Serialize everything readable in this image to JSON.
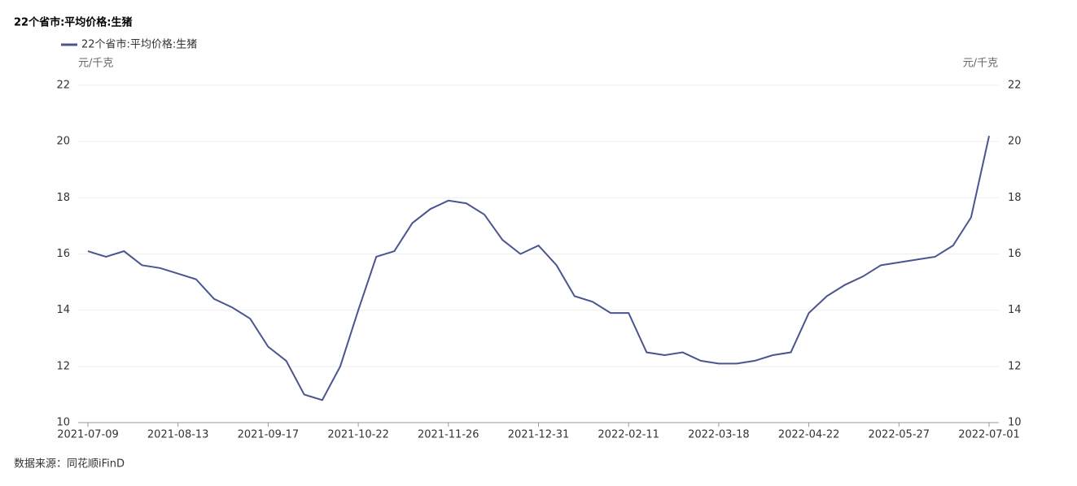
{
  "chart_data": {
    "type": "line",
    "title": "22个省市:平均价格:生猪",
    "y_unit": "元/千克",
    "y2_unit": "元/千克",
    "source": "数据来源：同花顺iFinD",
    "categories": [
      "2021-07-09",
      null,
      null,
      null,
      null,
      "2021-08-13",
      null,
      null,
      null,
      null,
      "2021-09-17",
      null,
      null,
      null,
      null,
      "2021-10-22",
      null,
      null,
      null,
      null,
      "2021-11-26",
      null,
      null,
      null,
      null,
      "2021-12-31",
      null,
      null,
      null,
      null,
      "2022-02-11",
      null,
      null,
      null,
      null,
      "2022-03-18",
      null,
      null,
      null,
      null,
      "2022-04-22",
      null,
      null,
      null,
      null,
      "2022-05-27",
      null,
      null,
      null,
      null,
      "2022-07-01"
    ],
    "series": [
      {
        "name": "22个省市:平均价格:生猪",
        "color": "#4a5590",
        "values": [
          16.1,
          15.9,
          16.1,
          15.6,
          15.5,
          15.3,
          15.1,
          14.4,
          14.1,
          13.7,
          12.7,
          12.2,
          11.0,
          10.8,
          12.0,
          14.0,
          15.9,
          16.1,
          17.1,
          17.6,
          17.9,
          17.8,
          17.4,
          16.5,
          16.0,
          16.3,
          15.6,
          14.5,
          14.3,
          13.9,
          13.9,
          12.5,
          12.4,
          12.5,
          12.2,
          12.1,
          12.1,
          12.2,
          12.4,
          12.5,
          13.9,
          14.5,
          14.9,
          15.2,
          15.6,
          15.7,
          15.8,
          15.9,
          16.3,
          17.3,
          20.2
        ]
      }
    ],
    "ylim": [
      10,
      22
    ],
    "yticks": [
      10,
      12,
      14,
      16,
      18,
      20,
      22
    ],
    "y2lim": [
      10,
      22
    ],
    "y2ticks": [
      10,
      12,
      14,
      16,
      18,
      20,
      22
    ],
    "grid": true
  }
}
